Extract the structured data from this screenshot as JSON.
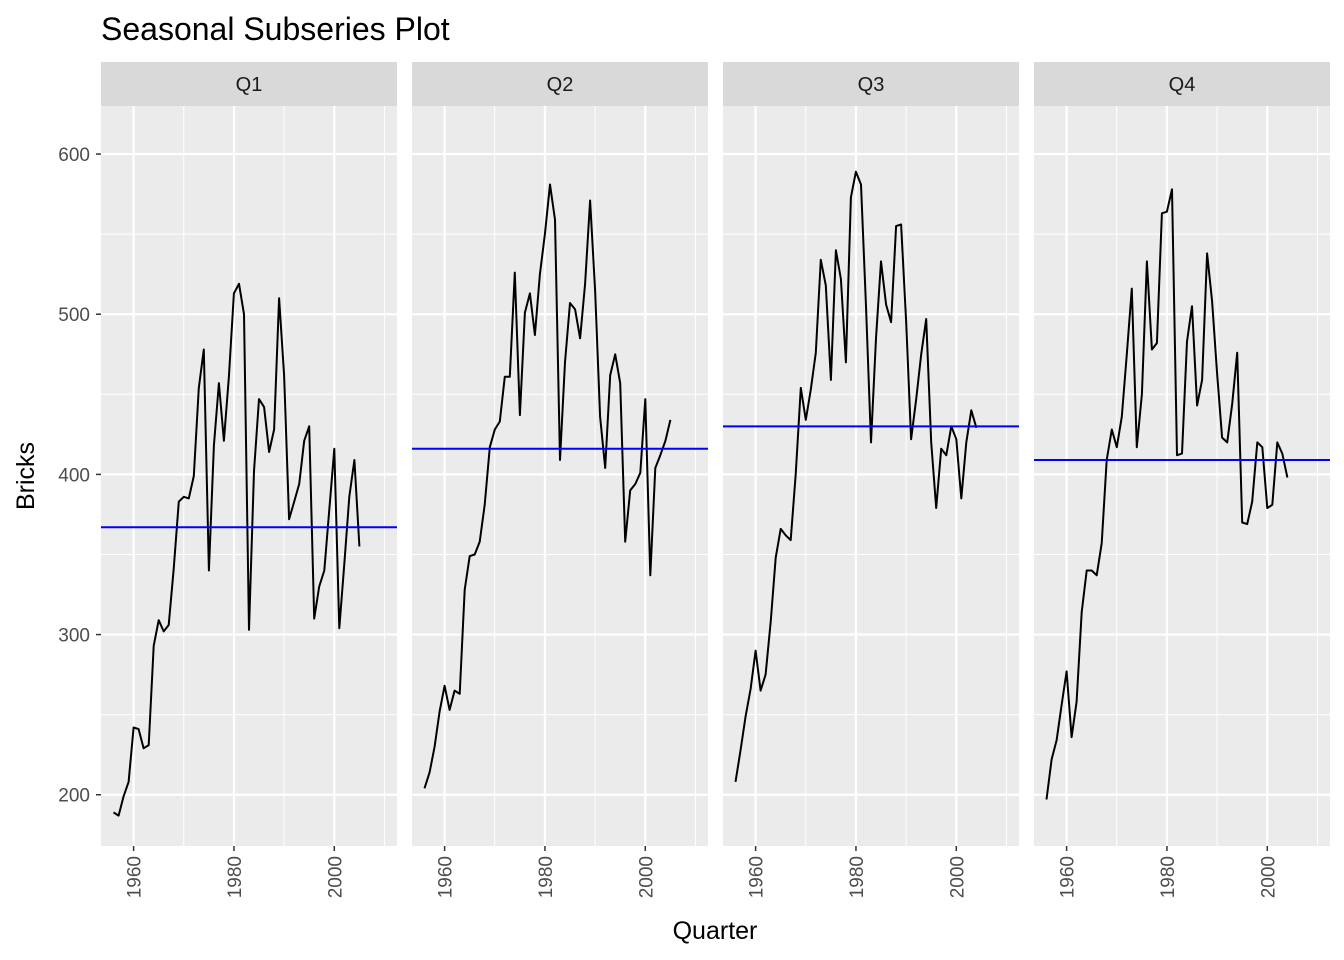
{
  "chart_data": {
    "type": "line",
    "title": "Seasonal Subseries Plot",
    "xlabel": "Quarter",
    "ylabel": "Bricks",
    "ylim": [
      168,
      630
    ],
    "xlim": [
      1953.5,
      2012.5
    ],
    "y_ticks": [
      200,
      300,
      400,
      500,
      600
    ],
    "x_ticks": [
      1960,
      1980,
      2000
    ],
    "grid": true,
    "colors": {
      "panel_bg": "#ebebeb",
      "strip_bg": "#d9d9d9",
      "grid": "#ffffff",
      "line": "#000000",
      "mean_line": "#0000ff"
    },
    "panels": [
      {
        "label": "Q1",
        "mean": 367,
        "points": [
          [
            1956,
            189
          ],
          [
            1957,
            187
          ],
          [
            1958,
            199
          ],
          [
            1959,
            208
          ],
          [
            1960,
            242
          ],
          [
            1961,
            241
          ],
          [
            1962,
            229
          ],
          [
            1963,
            231
          ],
          [
            1964,
            293
          ],
          [
            1965,
            309
          ],
          [
            1966,
            302
          ],
          [
            1967,
            306
          ],
          [
            1968,
            341
          ],
          [
            1969,
            383
          ],
          [
            1970,
            386
          ],
          [
            1971,
            385
          ],
          [
            1972,
            399
          ],
          [
            1973,
            454
          ],
          [
            1974,
            478
          ],
          [
            1975,
            340
          ],
          [
            1976,
            418
          ],
          [
            1977,
            457
          ],
          [
            1978,
            421
          ],
          [
            1979,
            461
          ],
          [
            1980,
            513
          ],
          [
            1981,
            519
          ],
          [
            1982,
            500
          ],
          [
            1983,
            303
          ],
          [
            1984,
            402
          ],
          [
            1985,
            447
          ],
          [
            1986,
            442
          ],
          [
            1987,
            414
          ],
          [
            1988,
            428
          ],
          [
            1989,
            510
          ],
          [
            1990,
            462
          ],
          [
            1991,
            372
          ],
          [
            1992,
            383
          ],
          [
            1993,
            394
          ],
          [
            1994,
            421
          ],
          [
            1995,
            430
          ],
          [
            1996,
            310
          ],
          [
            1997,
            330
          ],
          [
            1998,
            340
          ],
          [
            1999,
            378
          ],
          [
            2000,
            416
          ],
          [
            2001,
            304
          ],
          [
            2002,
            344
          ],
          [
            2003,
            386
          ],
          [
            2004,
            409
          ],
          [
            2005,
            355
          ]
        ]
      },
      {
        "label": "Q2",
        "mean": 416,
        "points": [
          [
            1956,
            204
          ],
          [
            1957,
            214
          ],
          [
            1958,
            230
          ],
          [
            1959,
            252
          ],
          [
            1960,
            268
          ],
          [
            1961,
            253
          ],
          [
            1962,
            265
          ],
          [
            1963,
            263
          ],
          [
            1964,
            328
          ],
          [
            1965,
            349
          ],
          [
            1966,
            350
          ],
          [
            1967,
            358
          ],
          [
            1968,
            381
          ],
          [
            1969,
            417
          ],
          [
            1970,
            428
          ],
          [
            1971,
            433
          ],
          [
            1972,
            461
          ],
          [
            1973,
            461
          ],
          [
            1974,
            526
          ],
          [
            1975,
            437
          ],
          [
            1976,
            501
          ],
          [
            1977,
            513
          ],
          [
            1978,
            487
          ],
          [
            1979,
            525
          ],
          [
            1980,
            550
          ],
          [
            1981,
            581
          ],
          [
            1982,
            559
          ],
          [
            1983,
            409
          ],
          [
            1984,
            470
          ],
          [
            1985,
            507
          ],
          [
            1986,
            503
          ],
          [
            1987,
            485
          ],
          [
            1988,
            519
          ],
          [
            1989,
            571
          ],
          [
            1990,
            515
          ],
          [
            1991,
            436
          ],
          [
            1992,
            404
          ],
          [
            1993,
            462
          ],
          [
            1994,
            475
          ],
          [
            1995,
            457
          ],
          [
            1996,
            358
          ],
          [
            1997,
            390
          ],
          [
            1998,
            394
          ],
          [
            1999,
            401
          ],
          [
            2000,
            447
          ],
          [
            2001,
            337
          ],
          [
            2002,
            404
          ],
          [
            2003,
            412
          ],
          [
            2004,
            421
          ],
          [
            2005,
            434
          ]
        ]
      },
      {
        "label": "Q3",
        "mean": 430,
        "points": [
          [
            1956,
            208
          ],
          [
            1957,
            228
          ],
          [
            1958,
            249
          ],
          [
            1959,
            266
          ],
          [
            1960,
            290
          ],
          [
            1961,
            265
          ],
          [
            1962,
            275
          ],
          [
            1963,
            308
          ],
          [
            1964,
            348
          ],
          [
            1965,
            366
          ],
          [
            1966,
            362
          ],
          [
            1967,
            359
          ],
          [
            1968,
            400
          ],
          [
            1969,
            454
          ],
          [
            1970,
            434
          ],
          [
            1971,
            453
          ],
          [
            1972,
            476
          ],
          [
            1973,
            534
          ],
          [
            1974,
            518
          ],
          [
            1975,
            459
          ],
          [
            1976,
            540
          ],
          [
            1977,
            522
          ],
          [
            1978,
            470
          ],
          [
            1979,
            573
          ],
          [
            1980,
            589
          ],
          [
            1981,
            581
          ],
          [
            1982,
            505
          ],
          [
            1983,
            420
          ],
          [
            1984,
            485
          ],
          [
            1985,
            533
          ],
          [
            1986,
            506
          ],
          [
            1987,
            495
          ],
          [
            1988,
            555
          ],
          [
            1989,
            556
          ],
          [
            1990,
            496
          ],
          [
            1991,
            422
          ],
          [
            1992,
            447
          ],
          [
            1993,
            475
          ],
          [
            1994,
            497
          ],
          [
            1995,
            420
          ],
          [
            1996,
            379
          ],
          [
            1997,
            416
          ],
          [
            1998,
            412
          ],
          [
            1999,
            430
          ],
          [
            2000,
            422
          ],
          [
            2001,
            385
          ],
          [
            2002,
            420
          ],
          [
            2003,
            440
          ],
          [
            2004,
            429
          ]
        ]
      },
      {
        "label": "Q4",
        "mean": 409,
        "points": [
          [
            1956,
            197
          ],
          [
            1957,
            222
          ],
          [
            1958,
            234
          ],
          [
            1959,
            256
          ],
          [
            1960,
            277
          ],
          [
            1961,
            236
          ],
          [
            1962,
            258
          ],
          [
            1963,
            314
          ],
          [
            1964,
            340
          ],
          [
            1965,
            340
          ],
          [
            1966,
            337
          ],
          [
            1967,
            357
          ],
          [
            1968,
            409
          ],
          [
            1969,
            428
          ],
          [
            1970,
            417
          ],
          [
            1971,
            436
          ],
          [
            1972,
            475
          ],
          [
            1973,
            516
          ],
          [
            1974,
            417
          ],
          [
            1975,
            450
          ],
          [
            1976,
            533
          ],
          [
            1977,
            478
          ],
          [
            1978,
            482
          ],
          [
            1979,
            563
          ],
          [
            1980,
            564
          ],
          [
            1981,
            578
          ],
          [
            1982,
            412
          ],
          [
            1983,
            413
          ],
          [
            1984,
            483
          ],
          [
            1985,
            505
          ],
          [
            1986,
            443
          ],
          [
            1987,
            459
          ],
          [
            1988,
            538
          ],
          [
            1989,
            508
          ],
          [
            1990,
            463
          ],
          [
            1991,
            423
          ],
          [
            1992,
            420
          ],
          [
            1993,
            444
          ],
          [
            1994,
            476
          ],
          [
            1995,
            370
          ],
          [
            1996,
            369
          ],
          [
            1997,
            383
          ],
          [
            1998,
            420
          ],
          [
            1999,
            417
          ],
          [
            2000,
            379
          ],
          [
            2001,
            381
          ],
          [
            2002,
            420
          ],
          [
            2003,
            413
          ],
          [
            2004,
            398
          ]
        ]
      }
    ]
  }
}
